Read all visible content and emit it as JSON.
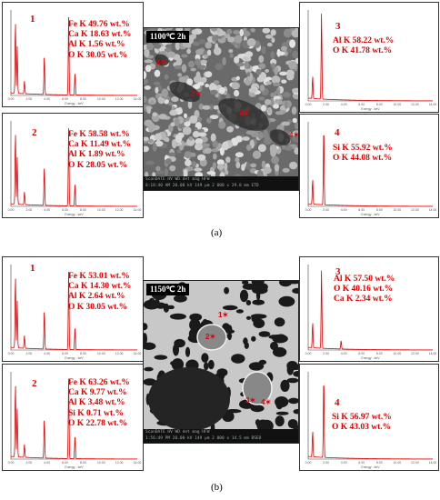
{
  "figure_a": {
    "caption": "(a)",
    "sem": {
      "title": "1100℃ 2h",
      "footer_line1": "ScanDATE   HV   WD   det   mag   HFW",
      "footer_line2": "8:18:40 AM  20.00 kV  149 µm  2 000 x  29.8 mm  ETD",
      "markers": [
        "1",
        "2",
        "3",
        "4"
      ]
    },
    "spectra": [
      {
        "number": "1",
        "lines": [
          "Fe K  49.76 wt.%",
          "Ca K  18.63 wt.%",
          "Al K    1.56 wt.%",
          "O  K   30.05 wt.%"
        ]
      },
      {
        "number": "2",
        "lines": [
          "Fe K  58.58 wt.%",
          "Ca K  11.49 wt.%",
          "Al K   1.89 wt.%",
          "O  K   28.05 wt.%"
        ]
      },
      {
        "number": "3",
        "lines": [
          "Al K  58.22 wt.%",
          "O  K  41.78 wt.%"
        ]
      },
      {
        "number": "4",
        "lines": [
          "Si K   55.92 wt.%",
          "O  K   44.08 wt.%"
        ]
      }
    ]
  },
  "figure_b": {
    "caption": "(b)",
    "sem": {
      "title": "1150℃ 2h",
      "footer_line1": "ScanDATE   HV   WD   det   mag   HFW",
      "footer_line2": "1:56:49 PM  20.00 kV  149 µm  2 000 x  14.5 mm  BSED",
      "markers": [
        "1",
        "2",
        "3",
        "4"
      ]
    },
    "spectra": [
      {
        "number": "1",
        "lines": [
          "Fe K  53.01 wt.%",
          "Ca K  14.30 wt.%",
          "Al K  2.64 wt.%",
          "O  K   30.05 wt.%"
        ]
      },
      {
        "number": "2",
        "lines": [
          "Fe K  63.26 wt.%",
          "Ca K  9.77 wt.%",
          "Al K  3.48 wt.%",
          "Si K   0.71 wt.%",
          "O  K   22.78 wt.%"
        ]
      },
      {
        "number": "3",
        "lines": [
          "Al K  57.50 wt.%",
          "O  K  40.16 wt.%",
          "Ca K  2.34 wt.%"
        ]
      },
      {
        "number": "4",
        "lines": [
          "Si K   56.97 wt.%",
          "O  K  43.03 wt.%"
        ]
      }
    ]
  },
  "axis": {
    "xlabel": "Energy - keV",
    "ticks": [
      "0.00",
      "2.00",
      "4.00",
      "6.00",
      "8.00",
      "10.00",
      "12.00",
      "14.00"
    ]
  },
  "colors": {
    "accent": "#e00000"
  }
}
